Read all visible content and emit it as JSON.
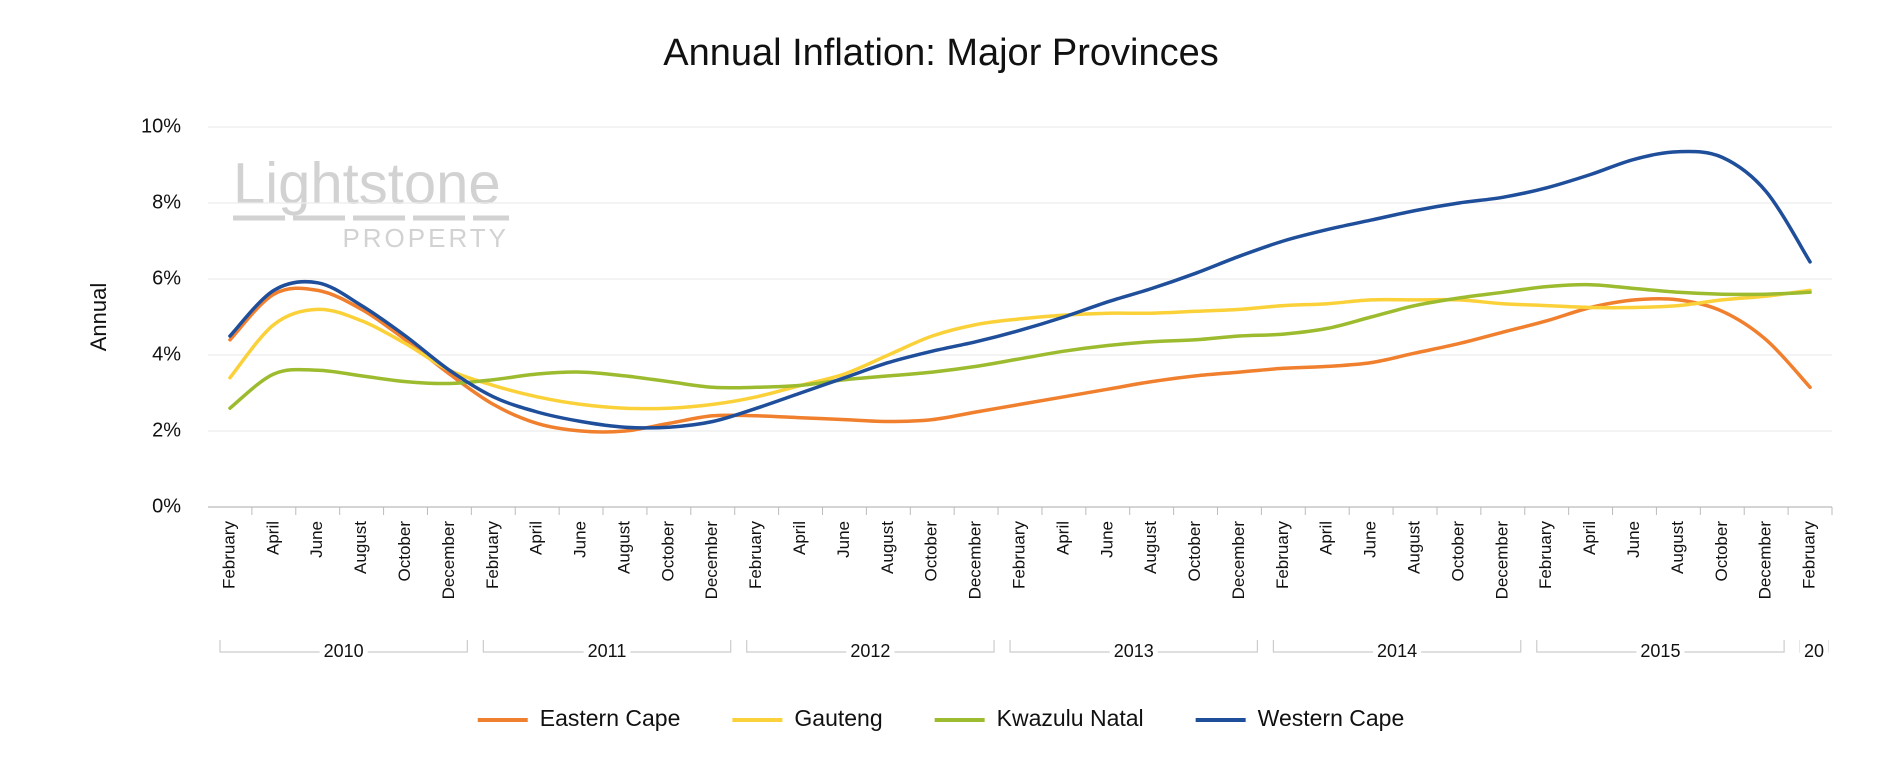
{
  "chart_data": {
    "type": "line",
    "title": "Annual Inflation: Major Provinces",
    "y_label": "Annual",
    "watermark": [
      "Lightstone",
      "PROPERTY"
    ],
    "categories": [
      "February",
      "April",
      "June",
      "August",
      "October",
      "December",
      "February",
      "April",
      "June",
      "August",
      "October",
      "December",
      "February",
      "April",
      "June",
      "August",
      "October",
      "December",
      "February",
      "April",
      "June",
      "August",
      "October",
      "December",
      "February",
      "April",
      "June",
      "August",
      "October",
      "December",
      "February",
      "April",
      "June",
      "August",
      "October",
      "December",
      "February"
    ],
    "year_groups": [
      "2010",
      "2011",
      "2012",
      "2013",
      "2014",
      "2015",
      "20"
    ],
    "ylim": [
      0,
      10
    ],
    "yticks": [
      {
        "value": 0,
        "label": "0%"
      },
      {
        "value": 2,
        "label": "2%"
      },
      {
        "value": 4,
        "label": "4%"
      },
      {
        "value": 6,
        "label": "6%"
      },
      {
        "value": 8,
        "label": "8%"
      },
      {
        "value": 10,
        "label": "10%"
      }
    ],
    "grid": true,
    "legend": "bottom",
    "series": [
      {
        "name": "Eastern Cape",
        "color": "#f07f2e",
        "values": [
          4.4,
          5.6,
          5.7,
          5.2,
          4.4,
          3.5,
          2.7,
          2.2,
          2.0,
          2.0,
          2.2,
          2.4,
          2.4,
          2.35,
          2.3,
          2.25,
          2.3,
          2.5,
          2.7,
          2.9,
          3.1,
          3.3,
          3.45,
          3.55,
          3.65,
          3.7,
          3.8,
          4.05,
          4.3,
          4.6,
          4.9,
          5.25,
          5.45,
          5.45,
          5.15,
          4.4,
          3.15
        ]
      },
      {
        "name": "Gauteng",
        "color": "#fbd13a",
        "values": [
          3.4,
          4.8,
          5.2,
          4.9,
          4.3,
          3.6,
          3.2,
          2.9,
          2.7,
          2.6,
          2.6,
          2.7,
          2.9,
          3.2,
          3.5,
          4.0,
          4.5,
          4.8,
          4.95,
          5.05,
          5.1,
          5.1,
          5.15,
          5.2,
          5.3,
          5.35,
          5.45,
          5.45,
          5.45,
          5.35,
          5.3,
          5.25,
          5.25,
          5.3,
          5.45,
          5.55,
          5.7
        ]
      },
      {
        "name": "Kwazulu Natal",
        "color": "#9dbb2e",
        "values": [
          2.6,
          3.5,
          3.6,
          3.45,
          3.3,
          3.25,
          3.35,
          3.5,
          3.55,
          3.45,
          3.3,
          3.15,
          3.15,
          3.2,
          3.35,
          3.45,
          3.55,
          3.7,
          3.9,
          4.1,
          4.25,
          4.35,
          4.4,
          4.5,
          4.55,
          4.7,
          5.0,
          5.3,
          5.5,
          5.65,
          5.8,
          5.85,
          5.75,
          5.65,
          5.6,
          5.6,
          5.65
        ]
      },
      {
        "name": "Western Cape",
        "color": "#1f4e9a",
        "values": [
          4.5,
          5.7,
          5.9,
          5.3,
          4.5,
          3.6,
          2.9,
          2.5,
          2.25,
          2.1,
          2.1,
          2.25,
          2.6,
          3.0,
          3.4,
          3.8,
          4.1,
          4.35,
          4.65,
          5.0,
          5.4,
          5.75,
          6.15,
          6.6,
          7.0,
          7.3,
          7.55,
          7.8,
          8.0,
          8.15,
          8.4,
          8.75,
          9.15,
          9.35,
          9.2,
          8.3,
          6.45
        ]
      }
    ]
  }
}
